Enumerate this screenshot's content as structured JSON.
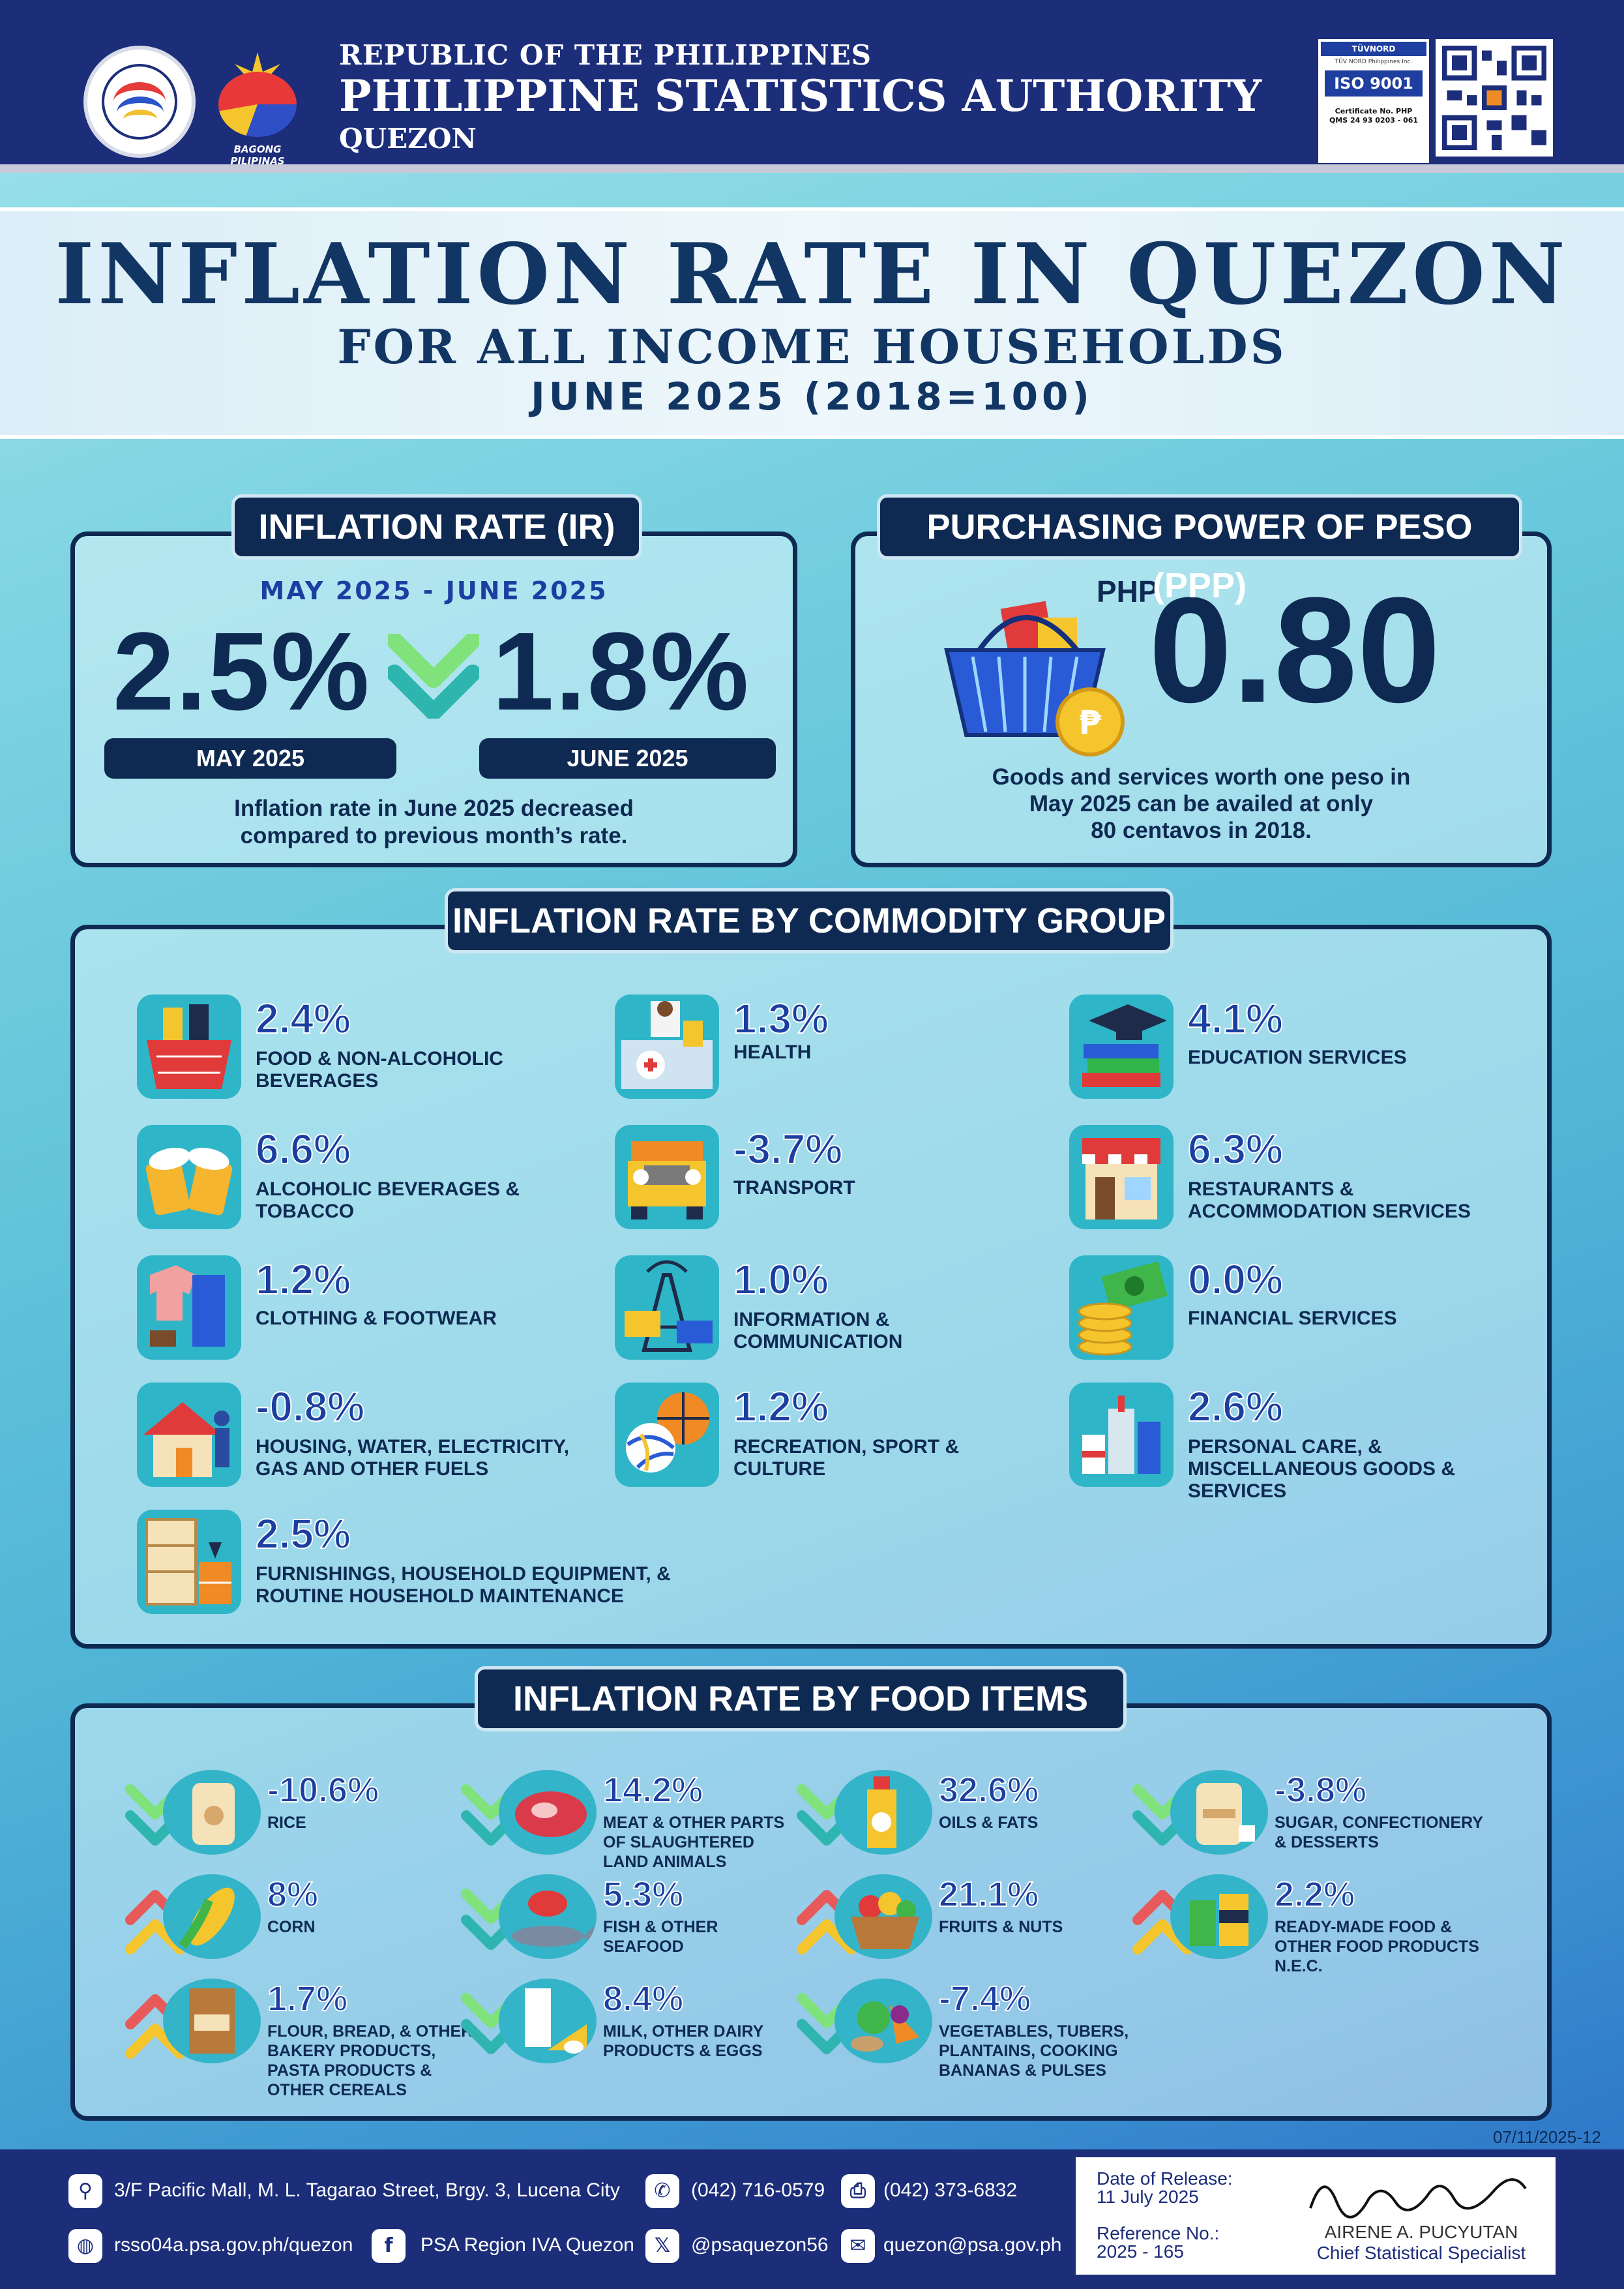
{
  "header": {
    "line1": "REPUBLIC OF THE PHILIPPINES",
    "line2": "PHILIPPINE STATISTICS AUTHORITY",
    "line3": "QUEZON",
    "bagong_pilipinas": "BAGONG PILIPINAS",
    "iso_badge": {
      "brand": "TÜVNORD",
      "company": "TÜV NORD Philippines Inc.",
      "standard": "ISO 9001",
      "cert_label": "Certificate No. PHP",
      "cert_no": "QMS 24 93 0203 - 061"
    }
  },
  "title": {
    "main": "INFLATION RATE IN QUEZON",
    "sub": "FOR ALL INCOME HOUSEHOLDS",
    "period": "JUNE 2025 (2018=100)"
  },
  "ir_panel": {
    "heading": "INFLATION RATE (IR)",
    "dates": "MAY 2025 -  JUNE 2025",
    "may_value": "2.5%",
    "june_value": "1.8%",
    "may_label": "MAY 2025",
    "june_label": "JUNE 2025",
    "description_1": "Inflation rate in June 2025 decreased",
    "description_2": "compared to previous month’s rate."
  },
  "ppp_panel": {
    "heading": "PURCHASING POWER OF PESO (PPP)",
    "currency": "PHP",
    "value": "0.80",
    "description_1": "Goods and services worth one peso in",
    "description_2": "May 2025 can be availed at only",
    "description_3": "80 centavos in 2018."
  },
  "commodity": {
    "heading": "INFLATION RATE  BY COMMODITY GROUP",
    "items": [
      {
        "value": "2.4%",
        "l1": "FOOD & NON-ALCOHOLIC",
        "l2": "BEVERAGES",
        "l3": ""
      },
      {
        "value": "1.3%",
        "l1": "HEALTH",
        "l2": "",
        "l3": ""
      },
      {
        "value": "4.1%",
        "l1": "EDUCATION SERVICES",
        "l2": "",
        "l3": ""
      },
      {
        "value": "6.6%",
        "l1": "ALCOHOLIC BEVERAGES &",
        "l2": "TOBACCO",
        "l3": ""
      },
      {
        "value": "-3.7%",
        "l1": "TRANSPORT",
        "l2": "",
        "l3": ""
      },
      {
        "value": "6.3%",
        "l1": "RESTAURANTS &",
        "l2": "ACCOMMODATION SERVICES",
        "l3": ""
      },
      {
        "value": "1.2%",
        "l1": "CLOTHING & FOOTWEAR",
        "l2": "",
        "l3": ""
      },
      {
        "value": "1.0%",
        "l1": "INFORMATION &",
        "l2": "COMMUNICATION",
        "l3": ""
      },
      {
        "value": "0.0%",
        "l1": "FINANCIAL SERVICES",
        "l2": "",
        "l3": ""
      },
      {
        "value": "-0.8%",
        "l1": "HOUSING, WATER, ELECTRICITY,",
        "l2": "GAS AND OTHER FUELS",
        "l3": ""
      },
      {
        "value": "1.2%",
        "l1": "RECREATION, SPORT &",
        "l2": "CULTURE",
        "l3": ""
      },
      {
        "value": "2.6%",
        "l1": "PERSONAL CARE, &",
        "l2": "MISCELLANEOUS GOODS &",
        "l3": "SERVICES"
      },
      {
        "value": "2.5%",
        "l1": "FURNISHINGS, HOUSEHOLD EQUIPMENT, &",
        "l2": "ROUTINE HOUSEHOLD MAINTENANCE",
        "l3": ""
      }
    ]
  },
  "food": {
    "heading": "INFLATION RATE BY FOOD ITEMS",
    "items": [
      {
        "value": "-10.6%",
        "l1": "RICE",
        "l2": "",
        "l3": "",
        "l4": "",
        "trend": "down"
      },
      {
        "value": "14.2%",
        "l1": "MEAT & OTHER PARTS",
        "l2": "OF SLAUGHTERED",
        "l3": "LAND ANIMALS",
        "l4": "",
        "trend": "down"
      },
      {
        "value": "32.6%",
        "l1": "OILS & FATS",
        "l2": "",
        "l3": "",
        "l4": "",
        "trend": "down"
      },
      {
        "value": "-3.8%",
        "l1": "SUGAR, CONFECTIONERY",
        "l2": "& DESSERTS",
        "l3": "",
        "l4": "",
        "trend": "down"
      },
      {
        "value": "8%",
        "l1": "CORN",
        "l2": "",
        "l3": "",
        "l4": "",
        "trend": "up"
      },
      {
        "value": "5.3%",
        "l1": "FISH & OTHER",
        "l2": "SEAFOOD",
        "l3": "",
        "l4": "",
        "trend": "down"
      },
      {
        "value": "21.1%",
        "l1": "FRUITS & NUTS",
        "l2": "",
        "l3": "",
        "l4": "",
        "trend": "up"
      },
      {
        "value": "2.2%",
        "l1": "READY-MADE FOOD &",
        "l2": "OTHER FOOD PRODUCTS",
        "l3": "N.E.C.",
        "l4": "",
        "trend": "up"
      },
      {
        "value": "1.7%",
        "l1": "FLOUR, BREAD, & OTHER",
        "l2": "BAKERY PRODUCTS,",
        "l3": "PASTA PRODUCTS &",
        "l4": "OTHER CEREALS",
        "trend": "up"
      },
      {
        "value": "8.4%",
        "l1": "MILK, OTHER DAIRY",
        "l2": "PRODUCTS & EGGS",
        "l3": "",
        "l4": "",
        "trend": "down"
      },
      {
        "value": "-7.4%",
        "l1": "VEGETABLES, TUBERS,",
        "l2": "PLANTAINS, COOKING",
        "l3": "BANANAS & PULSES",
        "l4": "",
        "trend": "down"
      }
    ]
  },
  "footer": {
    "address": "3/F Pacific Mall, M. L. Tagarao Street, Brgy. 3, Lucena City",
    "phone": "(042) 716-0579",
    "fax": "(042) 373-6832",
    "website": "rsso04a.psa.gov.ph/quezon",
    "facebook": "PSA Region IVA Quezon",
    "x_handle": "@psaquezon56",
    "email": "quezon@psa.gov.ph",
    "doc_code": "07/11/2025-12",
    "release_label": "Date of Release:",
    "release_date": "11 July 2025",
    "ref_label": "Reference No.:",
    "ref_no": "2025 - 165",
    "signatory": "AIRENE A. PUCYUTAN",
    "signatory_title": "Chief Statistical Specialist"
  }
}
